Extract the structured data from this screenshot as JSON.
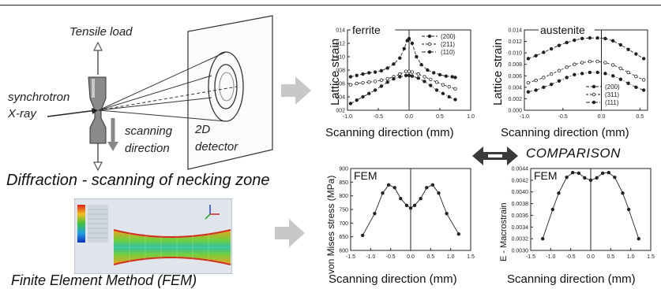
{
  "setup": {
    "tensile_load": "Tensile load",
    "synchrotron": "synchrotron",
    "xray": "X-ray",
    "scanning": "scanning",
    "direction": "direction",
    "detector_2d": "2D",
    "detector_word": "detector",
    "caption": "Diffraction - scanning of necking zone"
  },
  "fem_image": {
    "caption": "Finite Element Method (FEM)"
  },
  "comparison_label": "COMPARISON",
  "chart_data": [
    {
      "id": "ferrite",
      "type": "line",
      "title": "ferrite",
      "xlabel": "Scanning direction (mm)",
      "ylabel": "Lattice strain",
      "xlim": [
        -1.0,
        1.0
      ],
      "ylim": [
        0.002,
        0.014
      ],
      "xticks": [
        "-1.0",
        "-0.5",
        "0.0",
        "0.5",
        "1.0"
      ],
      "yticks": [
        "002",
        "004",
        "006",
        "008",
        "010",
        "012",
        "014"
      ],
      "series": [
        {
          "name": "(200)",
          "marker": "filled",
          "x": [
            -0.95,
            -0.85,
            -0.75,
            -0.65,
            -0.55,
            -0.45,
            -0.35,
            -0.25,
            -0.15,
            -0.08,
            -0.03,
            0.0,
            0.05,
            0.12,
            0.2,
            0.3,
            0.4,
            0.5,
            0.6,
            0.7,
            0.75
          ],
          "y": [
            0.007,
            0.0072,
            0.0074,
            0.0076,
            0.0077,
            0.0079,
            0.0083,
            0.0089,
            0.0098,
            0.0112,
            0.0124,
            0.0127,
            0.012,
            0.01,
            0.0088,
            0.008,
            0.0076,
            0.0073,
            0.0071,
            0.007,
            0.0069
          ]
        },
        {
          "name": "(211)",
          "marker": "open",
          "x": [
            -0.95,
            -0.85,
            -0.75,
            -0.65,
            -0.55,
            -0.45,
            -0.35,
            -0.25,
            -0.15,
            -0.05,
            0.0,
            0.05,
            0.15,
            0.25,
            0.35,
            0.45,
            0.55,
            0.65,
            0.75
          ],
          "y": [
            0.0058,
            0.006,
            0.0061,
            0.0062,
            0.0063,
            0.0065,
            0.0067,
            0.007,
            0.0074,
            0.0078,
            0.0078,
            0.0077,
            0.0074,
            0.007,
            0.0066,
            0.0062,
            0.0058,
            0.0055,
            0.0052
          ]
        },
        {
          "name": "(110)",
          "marker": "filled",
          "x": [
            -0.95,
            -0.85,
            -0.75,
            -0.65,
            -0.55,
            -0.45,
            -0.35,
            -0.25,
            -0.15,
            -0.05,
            0.0,
            0.05,
            0.15,
            0.25,
            0.35,
            0.45,
            0.55,
            0.65,
            0.75
          ],
          "y": [
            0.003,
            0.0035,
            0.004,
            0.0045,
            0.005,
            0.0056,
            0.0062,
            0.0067,
            0.007,
            0.0072,
            0.0072,
            0.0071,
            0.0068,
            0.0063,
            0.0057,
            0.005,
            0.0045,
            0.004,
            0.0036
          ]
        }
      ]
    },
    {
      "id": "austenite",
      "type": "line",
      "title": "austenite",
      "xlabel": "Scanning direction (mm)",
      "ylabel": "Lattice strain",
      "xlim": [
        -1.0,
        0.6
      ],
      "ylim": [
        0.0,
        0.014
      ],
      "xticks": [
        "-1.0",
        "-0.5",
        "0.0",
        "0.5"
      ],
      "yticks": [
        "0.000",
        "0.002",
        "0.004",
        "0.006",
        "0.008",
        "0.010",
        "0.012",
        "0.014"
      ],
      "series": [
        {
          "name": "(200)",
          "marker": "filled",
          "x": [
            -0.95,
            -0.85,
            -0.75,
            -0.65,
            -0.55,
            -0.45,
            -0.35,
            -0.25,
            -0.15,
            -0.05,
            0.05,
            0.15,
            0.25,
            0.35,
            0.45,
            0.55
          ],
          "y": [
            0.009,
            0.0095,
            0.0101,
            0.0107,
            0.0113,
            0.0118,
            0.0122,
            0.0125,
            0.0126,
            0.0126,
            0.0125,
            0.0121,
            0.0114,
            0.0106,
            0.0098,
            0.009
          ]
        },
        {
          "name": "(311)",
          "marker": "open",
          "x": [
            -0.95,
            -0.85,
            -0.75,
            -0.65,
            -0.55,
            -0.45,
            -0.35,
            -0.25,
            -0.15,
            -0.05,
            0.05,
            0.15,
            0.25,
            0.35,
            0.45,
            0.55
          ],
          "y": [
            0.0048,
            0.0052,
            0.0057,
            0.0063,
            0.0069,
            0.0075,
            0.008,
            0.0083,
            0.0085,
            0.0085,
            0.0083,
            0.0079,
            0.0073,
            0.0066,
            0.0059,
            0.0053
          ]
        },
        {
          "name": "(111)",
          "marker": "filled",
          "x": [
            -0.95,
            -0.85,
            -0.75,
            -0.65,
            -0.55,
            -0.45,
            -0.35,
            -0.25,
            -0.15,
            -0.05,
            0.05,
            0.15,
            0.25,
            0.35,
            0.45,
            0.55
          ],
          "y": [
            0.0032,
            0.0035,
            0.004,
            0.0045,
            0.0051,
            0.0057,
            0.0062,
            0.0064,
            0.0066,
            0.0066,
            0.0064,
            0.006,
            0.0054,
            0.0047,
            0.004,
            0.0035
          ]
        }
      ]
    },
    {
      "id": "fem-stress",
      "type": "line",
      "title": "FEM",
      "xlabel": "Scanning direction (mm)",
      "ylabel": "von Mises stress (MPa)",
      "xlim": [
        -1.5,
        1.5
      ],
      "ylim": [
        600,
        900
      ],
      "xticks": [
        "-1.5",
        "-1.0",
        "-0.5",
        "0.0",
        "0.5",
        "1.0",
        "1.5"
      ],
      "yticks": [
        "600",
        "650",
        "700",
        "750",
        "800",
        "850",
        "900"
      ],
      "series": [
        {
          "marker": "filled",
          "x": [
            -1.2,
            -0.9,
            -0.7,
            -0.55,
            -0.4,
            -0.25,
            -0.1,
            0.0,
            0.1,
            0.25,
            0.4,
            0.55,
            0.7,
            0.9,
            1.2
          ],
          "y": [
            655,
            735,
            810,
            840,
            830,
            790,
            765,
            755,
            765,
            790,
            830,
            840,
            810,
            735,
            660
          ]
        }
      ]
    },
    {
      "id": "fem-strain",
      "type": "line",
      "title": "FEM",
      "xlabel": "Scanning direction (mm)",
      "ylabel": "E - Macrostrain",
      "xlim": [
        -1.5,
        1.5
      ],
      "ylim": [
        0.003,
        0.0044
      ],
      "xticks": [
        "-1.5",
        "-1.0",
        "-0.5",
        "0.0",
        "0.5",
        "1.0",
        "1.5"
      ],
      "yticks": [
        "0.0030",
        "0.0032",
        "0.0034",
        "0.0036",
        "0.0038",
        "0.0040",
        "0.0042",
        "0.0044"
      ],
      "series": [
        {
          "marker": "filled",
          "x": [
            -1.2,
            -0.95,
            -0.8,
            -0.6,
            -0.45,
            -0.3,
            -0.15,
            0.0,
            0.15,
            0.3,
            0.45,
            0.6,
            0.8,
            0.95,
            1.2
          ],
          "y": [
            0.0032,
            0.0037,
            0.00398,
            0.00425,
            0.00433,
            0.00432,
            0.00424,
            0.0042,
            0.00424,
            0.00432,
            0.00433,
            0.00425,
            0.00398,
            0.0037,
            0.0032
          ]
        }
      ]
    }
  ]
}
